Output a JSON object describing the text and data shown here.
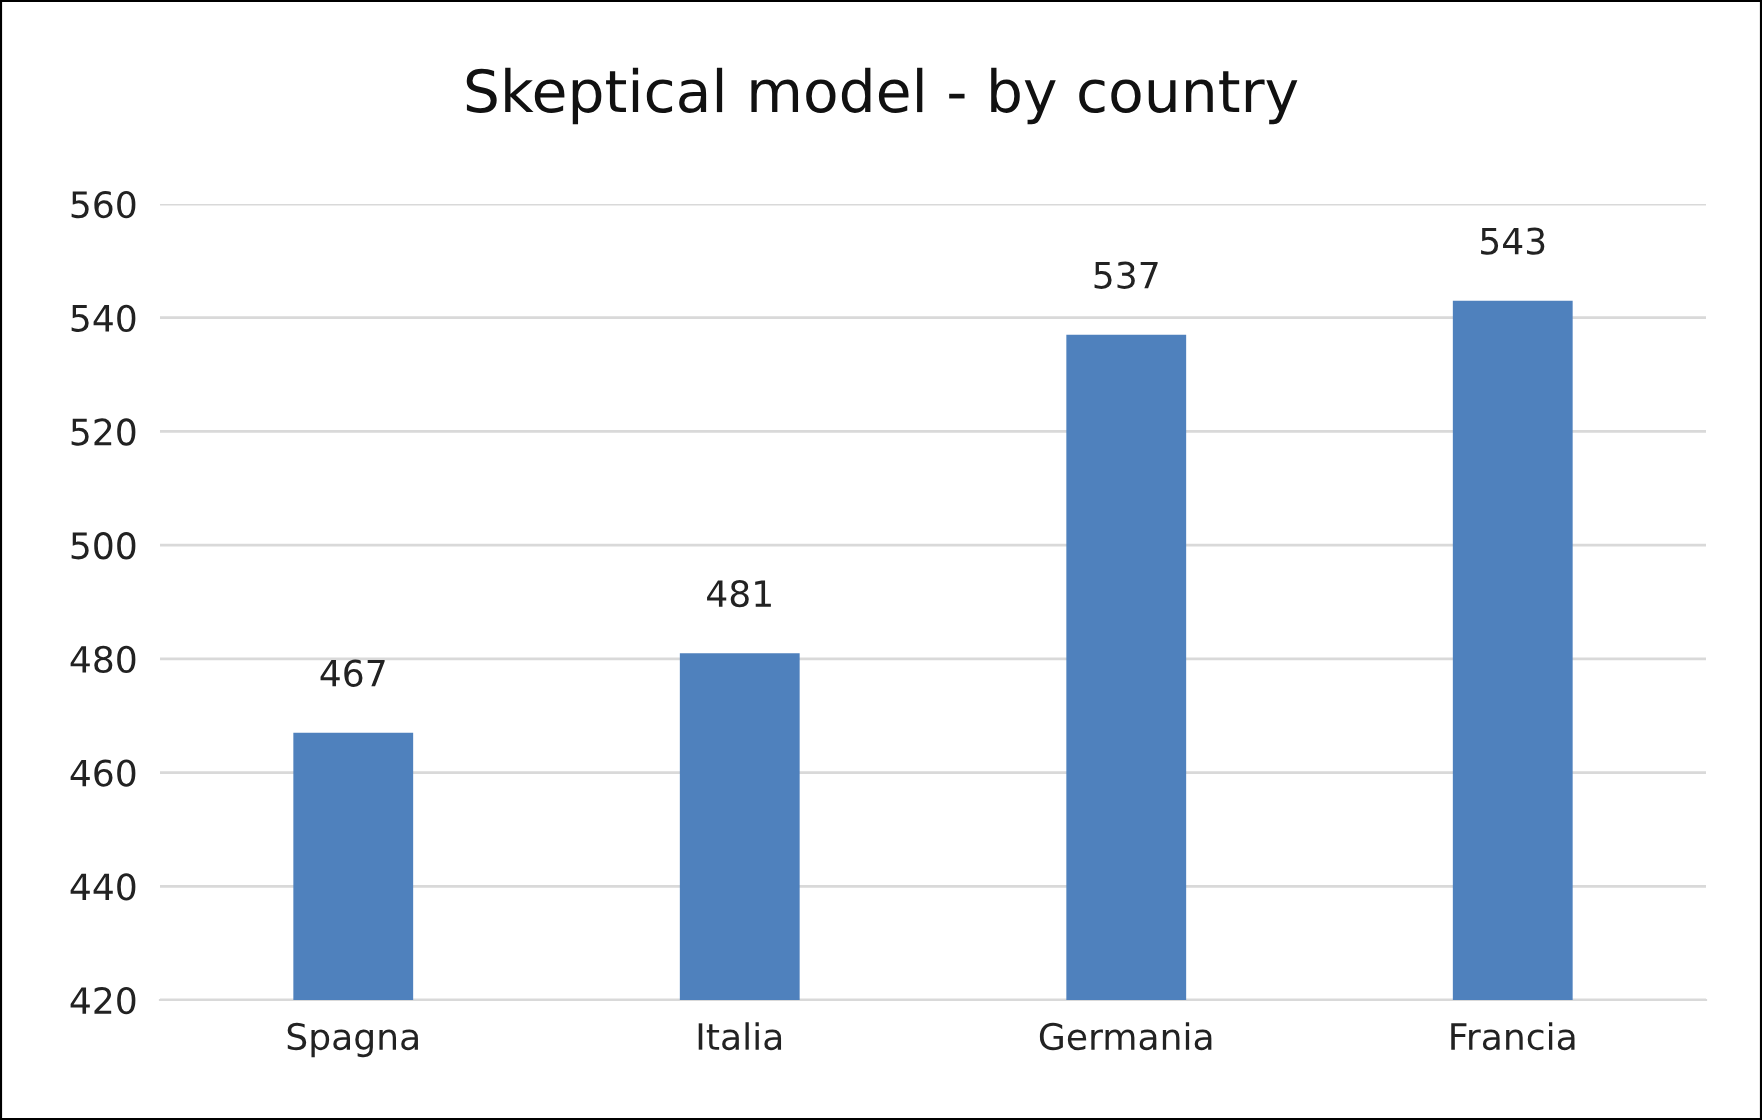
{
  "chart_data": {
    "type": "bar",
    "title": "Skeptical model - by country",
    "categories": [
      "Spagna",
      "Italia",
      "Germania",
      "Francia"
    ],
    "values": [
      467,
      481,
      537,
      543
    ],
    "color": "#4f81bd",
    "ylim": [
      420,
      560
    ],
    "yticks": [
      420,
      440,
      460,
      480,
      500,
      520,
      540,
      560
    ],
    "grid": "y",
    "data_labels": true
  }
}
